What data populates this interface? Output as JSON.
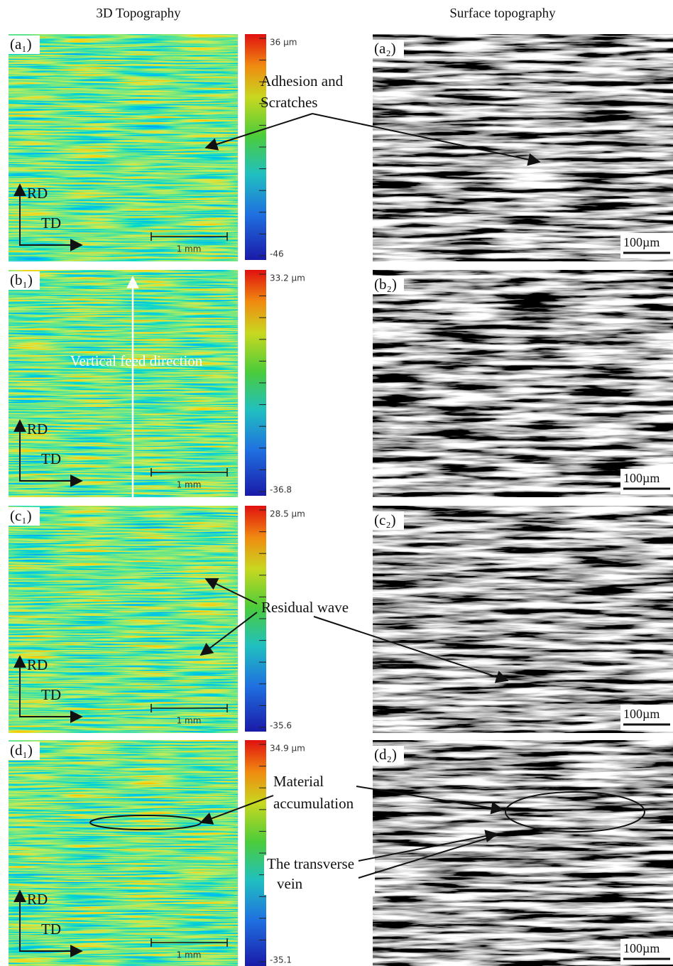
{
  "headers": {
    "left": "3D Topography",
    "right": "Surface topography"
  },
  "rows": [
    {
      "label_left": "(a₁)",
      "label_right": "(a₂)",
      "colorbar_max": "36 µm",
      "colorbar_min": "-46",
      "scale_left": "1 mm",
      "scale_right": "100µm",
      "axis_v": "RD",
      "axis_h": "TD"
    },
    {
      "label_left": "(b₁)",
      "label_right": "(b₂)",
      "colorbar_max": "33.2 µm",
      "colorbar_min": "-36.8",
      "scale_left": "1 mm",
      "scale_right": "100µm",
      "axis_v": "RD",
      "axis_h": "TD"
    },
    {
      "label_left": "(c₁)",
      "label_right": "(c₂)",
      "colorbar_max": "28.5 µm",
      "colorbar_min": "-35.6",
      "scale_left": "1 mm",
      "scale_right": "100µm",
      "axis_v": "RD",
      "axis_h": "TD"
    },
    {
      "label_left": "(d₁)",
      "label_right": "(d₂)",
      "colorbar_max": "34.9 µm",
      "colorbar_min": "-35.1",
      "scale_left": "1 mm",
      "scale_right": "100µm",
      "axis_v": "RD",
      "axis_h": "TD"
    }
  ],
  "annotations": {
    "adhesion": [
      "Adhesion and",
      "Scratches"
    ],
    "feed": "Vertical feed direction",
    "residual": "Residual wave",
    "material": [
      "Material",
      "accumulation"
    ],
    "vein": [
      "The transverse",
      "vein"
    ]
  }
}
